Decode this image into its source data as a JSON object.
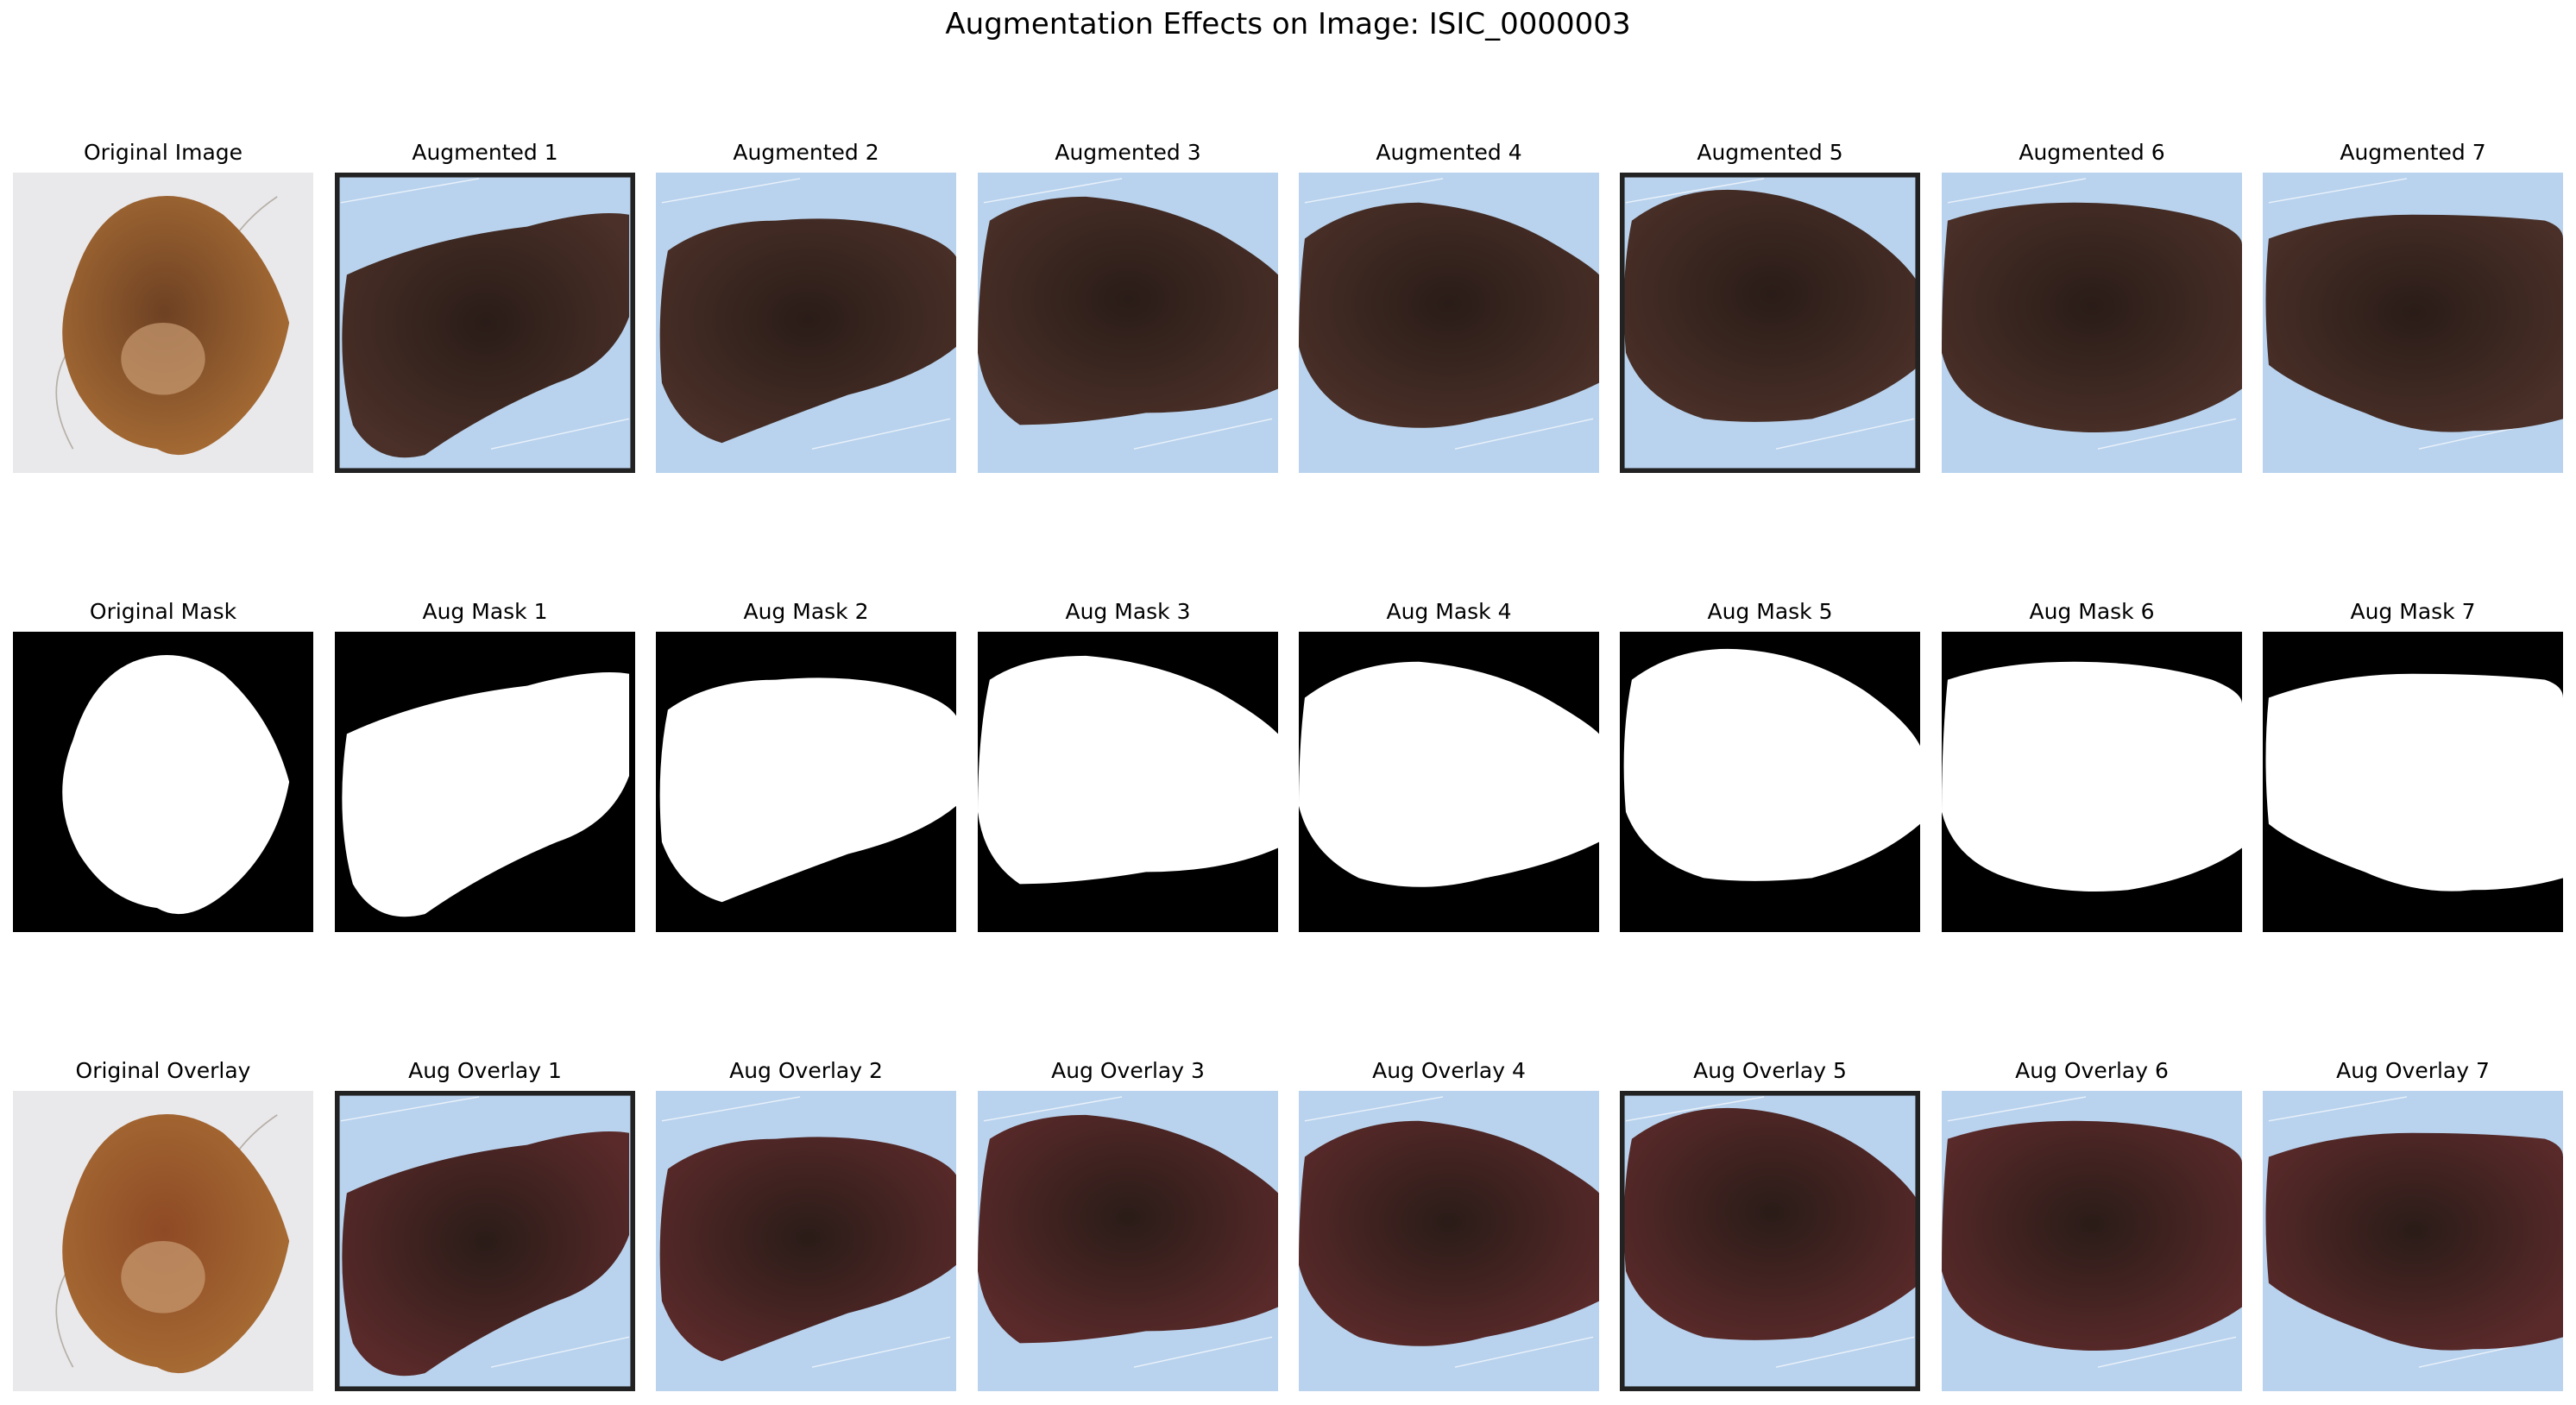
{
  "figure": {
    "title": "Augmentation Effects on Image: ISIC_0000003",
    "rows": [
      {
        "kind": "image",
        "titles": [
          "Original Image",
          "Augmented 1",
          "Augmented 2",
          "Augmented 3",
          "Augmented 4",
          "Augmented 5",
          "Augmented 6",
          "Augmented 7"
        ]
      },
      {
        "kind": "mask",
        "titles": [
          "Original Mask",
          "Aug Mask 1",
          "Aug Mask 2",
          "Aug Mask 3",
          "Aug Mask 4",
          "Aug Mask 5",
          "Aug Mask 6",
          "Aug Mask 7"
        ]
      },
      {
        "kind": "overlay",
        "titles": [
          "Original Overlay",
          "Aug Overlay 1",
          "Aug Overlay 2",
          "Aug Overlay 3",
          "Aug Overlay 4",
          "Aug Overlay 5",
          "Aug Overlay 6",
          "Aug Overlay 7"
        ]
      }
    ]
  },
  "colors": {
    "original_background": "#e9e9ec",
    "augmented_background": "#b9d3ee",
    "lesion_original": "#a86d35",
    "lesion_original_dark": "#6e4123",
    "lesion_augmented": "#4a3028",
    "lesion_augmented_dark": "#2a1c18",
    "overlay_original": "#8e4a25",
    "overlay_augmented": "#5a2a2a",
    "mask_background": "#000000",
    "mask_foreground": "#ffffff",
    "border": "#222222"
  }
}
